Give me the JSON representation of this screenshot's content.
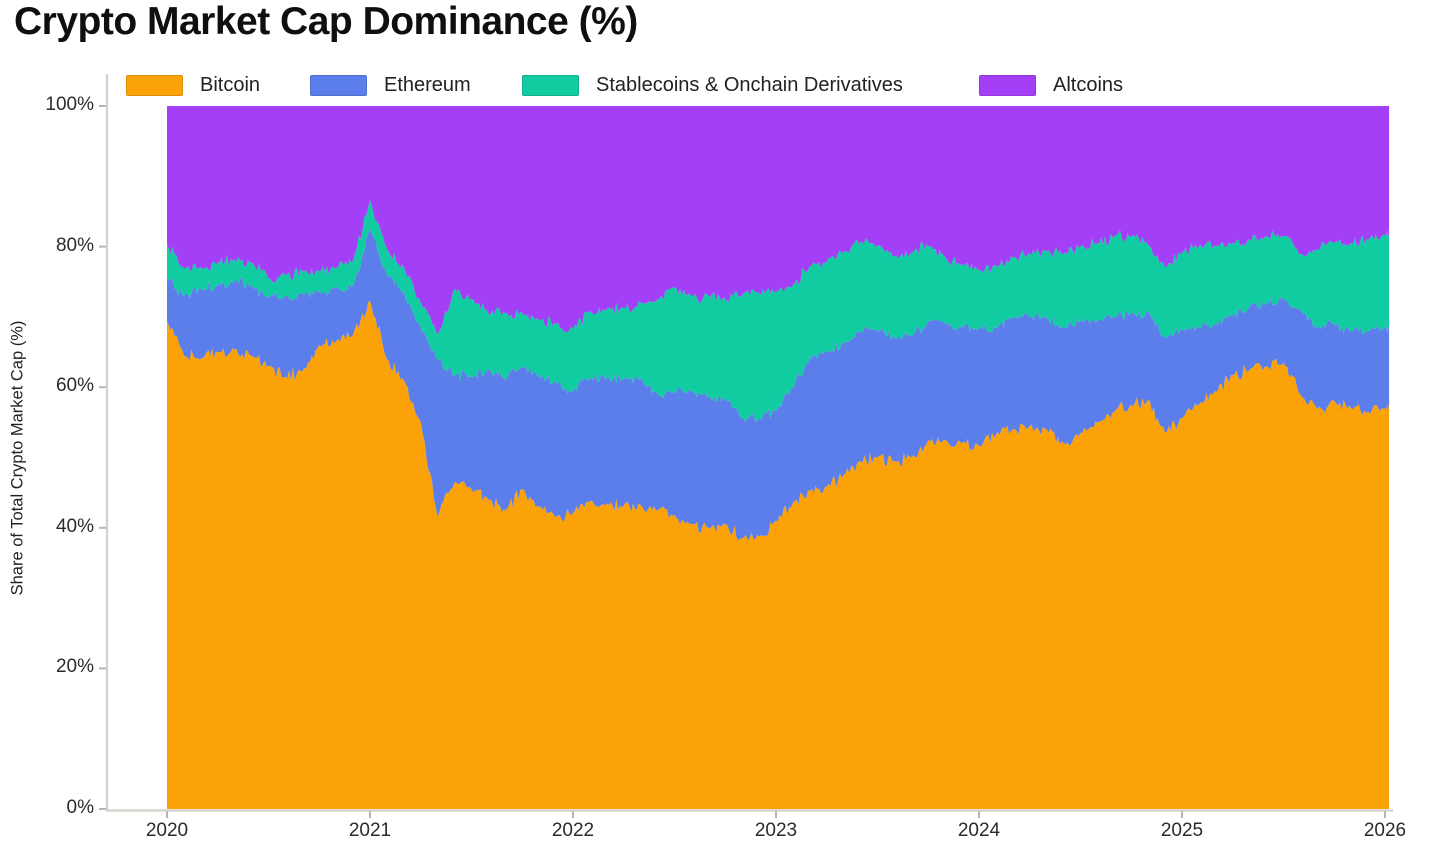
{
  "title": "Crypto Market Cap Dominance (%)",
  "chart_data": {
    "type": "area",
    "stacked": true,
    "title": "Crypto Market Cap Dominance (%)",
    "xlabel": "",
    "ylabel": "Share of Total Crypto Market Cap (%)",
    "ylim": [
      0,
      100
    ],
    "xlim": [
      2020,
      2026.02
    ],
    "grid": false,
    "legend_position": "top",
    "y_ticks": [
      {
        "value": 0,
        "label": "0%"
      },
      {
        "value": 20,
        "label": "20%"
      },
      {
        "value": 40,
        "label": "40%"
      },
      {
        "value": 60,
        "label": "60%"
      },
      {
        "value": 80,
        "label": "80%"
      },
      {
        "value": 100,
        "label": "100%"
      }
    ],
    "x_ticks": [
      {
        "value": 2020,
        "label": "2020"
      },
      {
        "value": 2021,
        "label": "2021"
      },
      {
        "value": 2022,
        "label": "2022"
      },
      {
        "value": 2023,
        "label": "2023"
      },
      {
        "value": 2024,
        "label": "2024"
      },
      {
        "value": 2025,
        "label": "2025"
      },
      {
        "value": 2026,
        "label": "2026"
      }
    ],
    "axis_color": "#d4cfc7",
    "tick_color": "#b9b4ae",
    "x": [
      2020.0,
      2020.083,
      2020.167,
      2020.25,
      2020.333,
      2020.417,
      2020.5,
      2020.583,
      2020.667,
      2020.75,
      2020.833,
      2020.917,
      2021.0,
      2021.083,
      2021.167,
      2021.25,
      2021.333,
      2021.417,
      2021.5,
      2021.583,
      2021.667,
      2021.75,
      2021.833,
      2021.917,
      2022.0,
      2022.083,
      2022.167,
      2022.25,
      2022.333,
      2022.417,
      2022.5,
      2022.583,
      2022.667,
      2022.75,
      2022.833,
      2022.917,
      2023.0,
      2023.083,
      2023.167,
      2023.25,
      2023.333,
      2023.417,
      2023.5,
      2023.583,
      2023.667,
      2023.75,
      2023.833,
      2023.917,
      2024.0,
      2024.083,
      2024.167,
      2024.25,
      2024.333,
      2024.417,
      2024.5,
      2024.583,
      2024.667,
      2024.75,
      2024.833,
      2024.917,
      2025.0,
      2025.083,
      2025.167,
      2025.25,
      2025.333,
      2025.417,
      2025.5,
      2025.583,
      2025.667,
      2025.75,
      2025.833,
      2025.917,
      2026.0,
      2026.02
    ],
    "series": [
      {
        "name": "Bitcoin",
        "color": "#FBA208",
        "values": [
          69.5,
          64.5,
          64,
          65,
          65.3,
          64.5,
          63,
          61.5,
          62.3,
          66,
          66.5,
          67.5,
          72.3,
          64,
          61,
          55,
          41.5,
          46.5,
          45.5,
          44,
          42.5,
          45.5,
          43,
          41.5,
          42.1,
          43.8,
          43.5,
          43.2,
          43.2,
          42.5,
          41.8,
          40.5,
          40,
          40.5,
          38.5,
          38.8,
          41,
          43.5,
          45.2,
          45.9,
          47.5,
          49.5,
          50,
          49.5,
          50,
          52.5,
          52.5,
          52,
          51.6,
          53.2,
          54,
          54.5,
          54,
          52,
          53.5,
          55,
          56.5,
          57.5,
          58.2,
          53.5,
          55.6,
          57.5,
          59.5,
          61.7,
          62.5,
          63,
          63.5,
          59,
          56.8,
          58,
          57,
          56.5,
          57,
          57.2
        ]
      },
      {
        "name": "Ethereum",
        "color": "#5B7EEA",
        "values": [
          6,
          8.5,
          10,
          9.5,
          9.8,
          10,
          9.7,
          11.5,
          11,
          7.6,
          7.5,
          7,
          10.2,
          12,
          12.5,
          13.5,
          22.5,
          15.1,
          16,
          18.5,
          18.5,
          17.5,
          18.5,
          19,
          17.3,
          17.5,
          17.8,
          18,
          18.1,
          16.5,
          17.6,
          19,
          18.5,
          18,
          17.1,
          16.8,
          15.6,
          16.5,
          19,
          19.2,
          18.8,
          18.5,
          18.2,
          17.5,
          17.3,
          16.9,
          16.5,
          16.5,
          16.8,
          15.2,
          16,
          15.5,
          15.8,
          16.6,
          16,
          14.5,
          13.5,
          13,
          12.5,
          13.5,
          12.5,
          11,
          9.5,
          8.6,
          9,
          9,
          9.2,
          11.9,
          11.6,
          11,
          11,
          11.5,
          11.4,
          11.4
        ]
      },
      {
        "name": "Stablecoins & Onchain Derivatives",
        "color": "#11CBA1",
        "values": [
          4.8,
          4,
          3,
          3.2,
          3,
          3.2,
          2.8,
          3,
          3.2,
          2.9,
          3,
          3.5,
          4.1,
          3.8,
          3.5,
          3.5,
          3.5,
          12.4,
          11,
          8,
          9.5,
          7.5,
          8,
          8.5,
          8.9,
          9.5,
          9.8,
          10,
          10.7,
          13.5,
          14.7,
          13.5,
          14.5,
          14,
          17.5,
          17.8,
          17,
          14.5,
          13,
          12.8,
          13,
          12.8,
          12,
          11.6,
          11.8,
          10.7,
          9.5,
          9,
          8.3,
          8.8,
          8.5,
          9,
          9.5,
          10.4,
          10.5,
          11,
          11.5,
          11,
          9.5,
          10,
          11,
          11.5,
          11,
          10.2,
          9.5,
          9.5,
          8.8,
          8,
          11.2,
          11.5,
          12.5,
          13,
          13.3,
          13
        ]
      },
      {
        "name": "Altcoins",
        "color": "#A43FF8",
        "values": [
          19.7,
          23,
          23,
          22.3,
          21.9,
          22.3,
          24.5,
          24,
          23.5,
          23.5,
          23,
          22,
          13.4,
          20.2,
          23,
          28,
          32.5,
          26,
          27.5,
          29.5,
          29.5,
          29.5,
          30.5,
          31,
          31.7,
          29.2,
          28.9,
          28.8,
          28,
          27.5,
          25.9,
          27,
          27,
          27.5,
          26.9,
          26.6,
          26.4,
          25.5,
          22.8,
          22.1,
          20.7,
          19.2,
          19.8,
          21.4,
          20.9,
          19.9,
          21.5,
          22.5,
          23.3,
          22.8,
          21.5,
          21,
          20.7,
          21,
          20,
          19.5,
          18.5,
          18.5,
          19.8,
          23,
          20.9,
          20,
          20,
          19.5,
          19,
          18.5,
          18.5,
          21.1,
          20.4,
          19.5,
          19.5,
          19,
          18.3,
          18.4
        ]
      }
    ]
  }
}
